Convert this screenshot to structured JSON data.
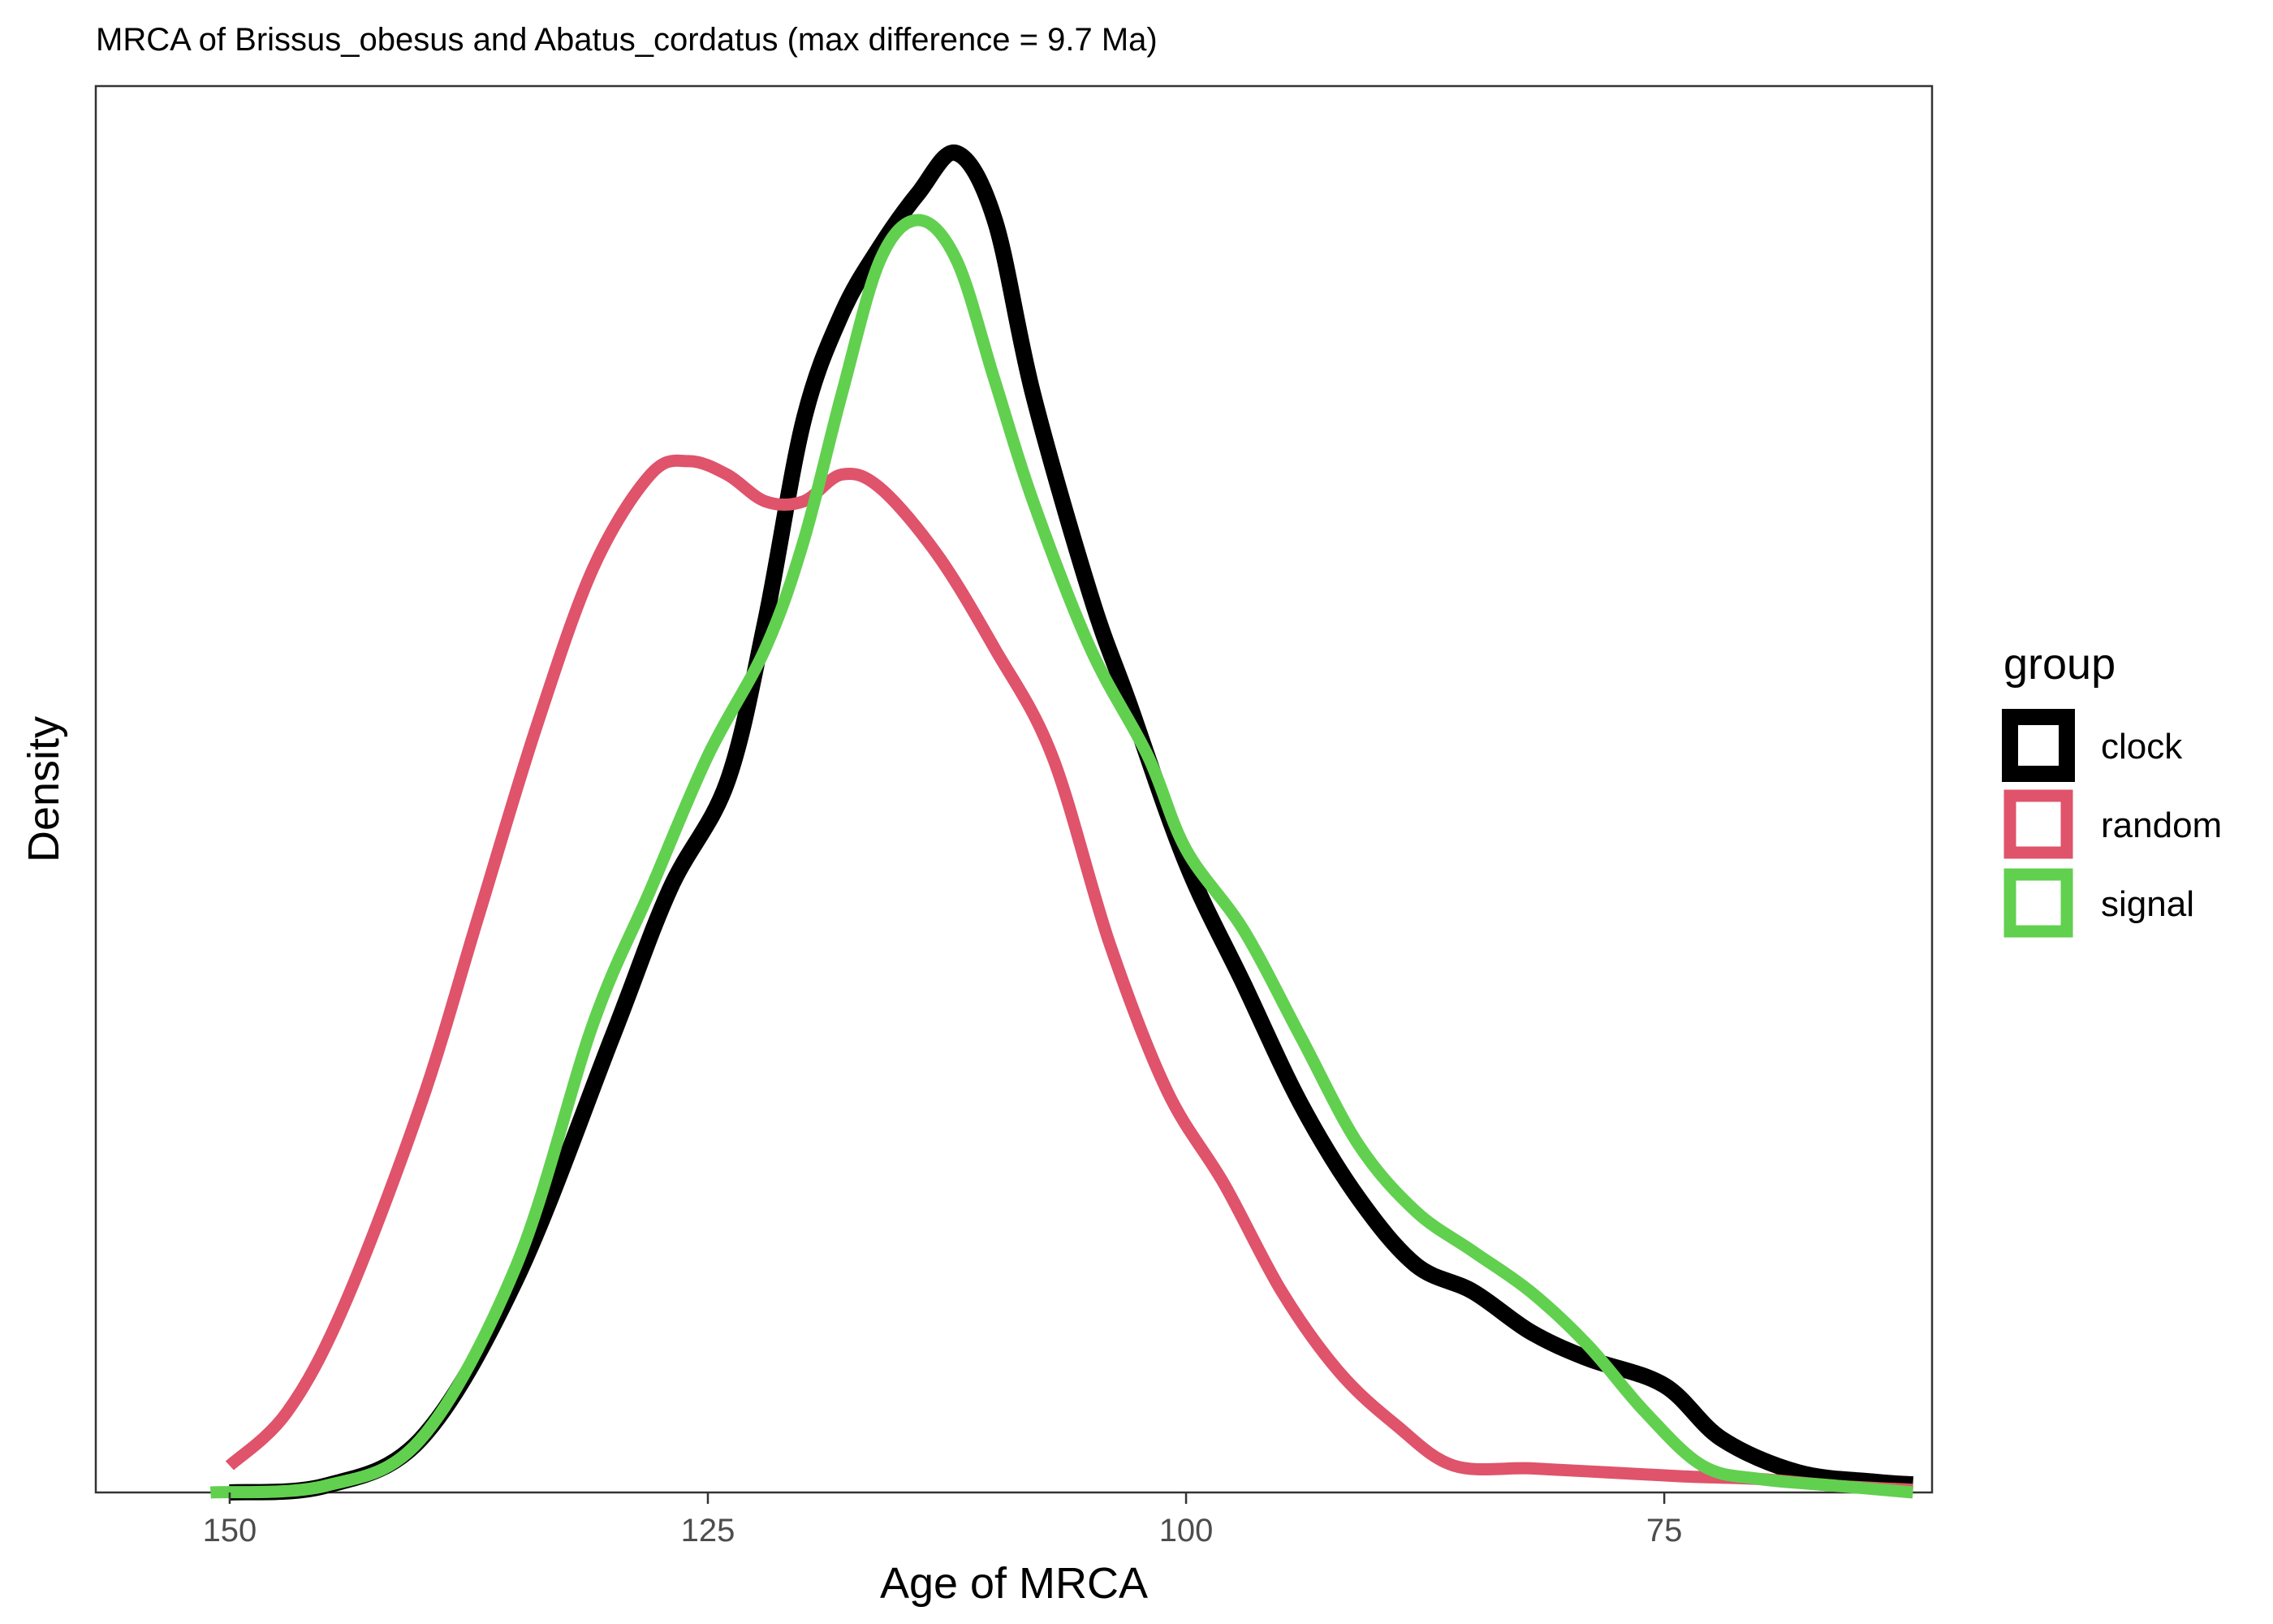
{
  "chart_data": {
    "type": "line",
    "title": "MRCA of Brissus_obesus and Abatus_cordatus (max difference = 9.7 Ma)",
    "xlabel": "Age of MRCA",
    "ylabel": "Density",
    "x_reversed": true,
    "xlim": [
      157,
      61
    ],
    "ylim": [
      0,
      1.05
    ],
    "x_ticks": [
      150,
      125,
      100,
      75
    ],
    "x_tick_labels": [
      "150",
      "125",
      "100",
      "75"
    ],
    "y_ticks_shown": false,
    "grid": false,
    "legend": {
      "title": "group",
      "placement": "right"
    },
    "series": [
      {
        "name": "clock",
        "color": "#000000",
        "points": [
          [
            150,
            0.0
          ],
          [
            145,
            0.005
          ],
          [
            140,
            0.04
          ],
          [
            135,
            0.16
          ],
          [
            130,
            0.34
          ],
          [
            127,
            0.45
          ],
          [
            124,
            0.53
          ],
          [
            122,
            0.65
          ],
          [
            120,
            0.8
          ],
          [
            118,
            0.88
          ],
          [
            116,
            0.93
          ],
          [
            114,
            0.97
          ],
          [
            112,
            1.0
          ],
          [
            110,
            0.95
          ],
          [
            108,
            0.82
          ],
          [
            105,
            0.67
          ],
          [
            103,
            0.59
          ],
          [
            100,
            0.47
          ],
          [
            97,
            0.38
          ],
          [
            94,
            0.29
          ],
          [
            91,
            0.22
          ],
          [
            88,
            0.17
          ],
          [
            85,
            0.15
          ],
          [
            82,
            0.12
          ],
          [
            79,
            0.1
          ],
          [
            75,
            0.08
          ],
          [
            72,
            0.04
          ],
          [
            68,
            0.015
          ],
          [
            64,
            0.008
          ],
          [
            62,
            0.006
          ]
        ]
      },
      {
        "name": "random",
        "color": "#df536b",
        "points": [
          [
            150,
            0.02
          ],
          [
            147,
            0.06
          ],
          [
            144,
            0.14
          ],
          [
            140,
            0.29
          ],
          [
            137,
            0.43
          ],
          [
            134,
            0.57
          ],
          [
            131,
            0.69
          ],
          [
            128,
            0.76
          ],
          [
            126,
            0.77
          ],
          [
            124,
            0.76
          ],
          [
            122,
            0.74
          ],
          [
            120,
            0.74
          ],
          [
            118,
            0.76
          ],
          [
            116,
            0.75
          ],
          [
            113,
            0.7
          ],
          [
            110,
            0.63
          ],
          [
            107,
            0.55
          ],
          [
            104,
            0.41
          ],
          [
            101,
            0.3
          ],
          [
            98,
            0.23
          ],
          [
            95,
            0.15
          ],
          [
            92,
            0.09
          ],
          [
            89,
            0.05
          ],
          [
            86,
            0.02
          ],
          [
            82,
            0.018
          ],
          [
            78,
            0.015
          ],
          [
            74,
            0.012
          ],
          [
            70,
            0.01
          ],
          [
            66,
            0.005
          ],
          [
            62,
            0.002
          ]
        ]
      },
      {
        "name": "signal",
        "color": "#61d04f",
        "points": [
          [
            151,
            0.0
          ],
          [
            145,
            0.005
          ],
          [
            140,
            0.04
          ],
          [
            135,
            0.17
          ],
          [
            131,
            0.35
          ],
          [
            128,
            0.45
          ],
          [
            125,
            0.55
          ],
          [
            122,
            0.63
          ],
          [
            120,
            0.71
          ],
          [
            118,
            0.82
          ],
          [
            116,
            0.92
          ],
          [
            114,
            0.95
          ],
          [
            112,
            0.92
          ],
          [
            110,
            0.83
          ],
          [
            108,
            0.74
          ],
          [
            105,
            0.63
          ],
          [
            102,
            0.55
          ],
          [
            100,
            0.48
          ],
          [
            97,
            0.42
          ],
          [
            94,
            0.34
          ],
          [
            91,
            0.26
          ],
          [
            88,
            0.21
          ],
          [
            85,
            0.18
          ],
          [
            82,
            0.15
          ],
          [
            79,
            0.11
          ],
          [
            76,
            0.06
          ],
          [
            73,
            0.02
          ],
          [
            70,
            0.01
          ],
          [
            66,
            0.005
          ],
          [
            62,
            0.0
          ]
        ]
      }
    ]
  }
}
